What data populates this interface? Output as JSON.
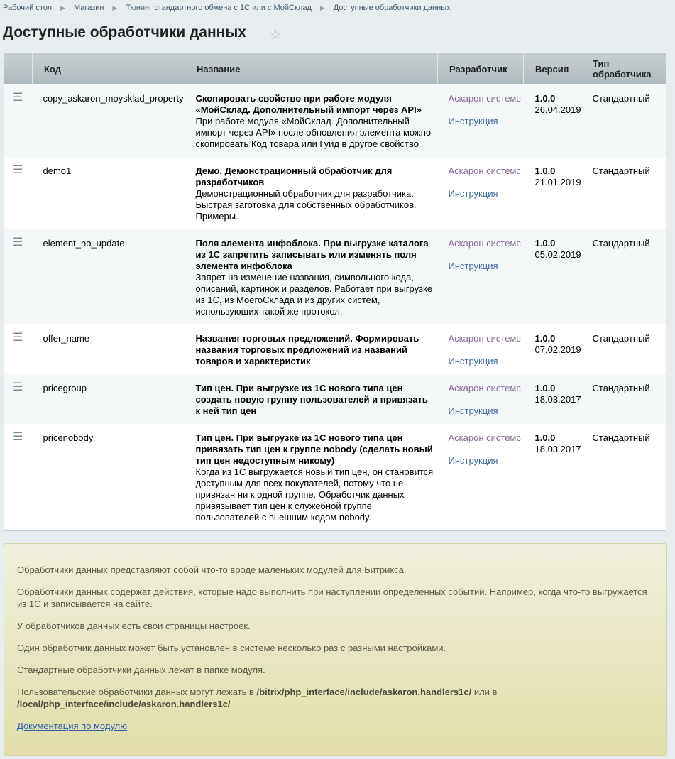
{
  "breadcrumbs": [
    "Рабочий стол",
    "Магазин",
    "Тюнинг стандартного обмена с 1С или с МойСклад",
    "Доступные обработчики данных"
  ],
  "title": "Доступные обработчики данных",
  "columns": [
    "",
    "Код",
    "Название",
    "Разработчик",
    "Версия",
    "Тип обработчика"
  ],
  "rows": [
    {
      "code": "copy_askaron_moysklad_property",
      "name": "Скопировать свойство при работе модуля «МойСклад. Дополнительный импорт через API»",
      "desc": "При работе модуля «МойСклад. Дополнительный импорт через API» после обновления элемента можно скопировать Код товара или Гуид в другое свойство",
      "dev": "Аскарон системс",
      "instr": "Инструкция",
      "version": "1.0.0",
      "date": "26.04.2019",
      "type": "Стандартный"
    },
    {
      "code": "demo1",
      "name": "Демо. Демонстрационный обработчик для разработчиков",
      "desc": "Демонстрационный обработчик для разработчика. Быстрая заготовка для собственных обработчиков. Примеры.",
      "dev": "Аскарон системс",
      "instr": "Инструкция",
      "version": "1.0.0",
      "date": "21.01.2019",
      "type": "Стандартный"
    },
    {
      "code": "element_no_update",
      "name": "Поля элемента инфоблока. При выгрузке каталога из 1С запретить записывать или изменять поля элемента инфоблока",
      "desc": "Запрет на изменение названия, символьного кода, описаний, картинок и разделов. Работает при выгрузке из 1С, из МоегоСклада и из других систем, использующих такой же протокол.",
      "dev": "Аскарон системс",
      "instr": "Инструкция",
      "version": "1.0.0",
      "date": "05.02.2019",
      "type": "Стандартный"
    },
    {
      "code": "offer_name",
      "name": "Названия торговых предложений. Формировать названия торговых предложений из названий товаров и характеристик",
      "desc": "",
      "dev": "Аскарон системс",
      "instr": "Инструкция",
      "version": "1.0.0",
      "date": "07.02.2019",
      "type": "Стандартный"
    },
    {
      "code": "pricegroup",
      "name": "Тип цен. При выгрузке из 1С нового типа цен создать новую группу пользователей и привязать к ней тип цен",
      "desc": "",
      "dev": "Аскарон системс",
      "instr": "Инструкция",
      "version": "1.0.0",
      "date": "18.03.2017",
      "type": "Стандартный"
    },
    {
      "code": "pricenobody",
      "name": "Тип цен. При выгрузке из 1С нового типа цен привязать тип цен к группе nobody (сделать новый тип цен недоступным никому)",
      "desc": "Когда из 1С выгружается новый тип цен, он становится доступным для всех покупателей, потому что не привязан ни к одной группе. Обработчик данных привязывает тип цен к служебной группе пользователей с внешним кодом nobody.",
      "dev": "Аскарон системс",
      "instr": "Инструкция",
      "version": "1.0.0",
      "date": "18.03.2017",
      "type": "Стандартный"
    }
  ],
  "info": {
    "p1": "Обработчики данных представляют собой что-то вроде маленьких модулей для Битрикса.",
    "p2": "Обработчики данных содержат действия, которые надо выполнить при наступлении определенных событий. Например, когда что-то выгружается из 1С и записывается на сайте.",
    "p3": "У обработчиков данных есть свои страницы настроек.",
    "p4": "Один обработчик данных может быть установлен в системе несколько раз с разными настройками.",
    "p5": "Стандартные обработчики данных лежат в папке модуля.",
    "p6a": "Пользовательские обработчики данных могут лежать в ",
    "p6b": "/bitrix/php_interface/include/askaron.handlers1c/",
    "p6c": " или в ",
    "p6d": "/local/php_interface/include/askaron.handlers1c/",
    "link": "Документация по модулю"
  }
}
